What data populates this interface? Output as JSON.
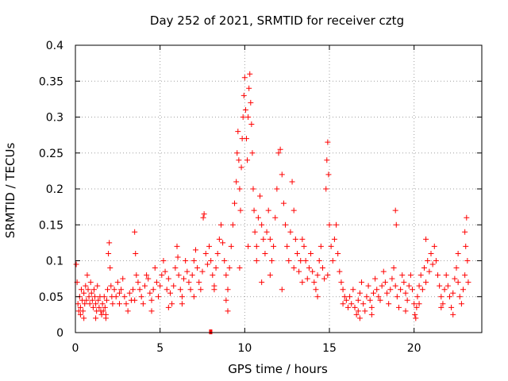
{
  "chart_data": {
    "type": "scatter",
    "title": "Day 252 of 2021, SRMTID for receiver cztg",
    "xlabel": "GPS time / hours",
    "ylabel": "SRMTID / TECUs",
    "xlim": [
      0,
      24
    ],
    "ylim": [
      0,
      0.4
    ],
    "x_ticks": [
      0,
      5,
      10,
      15,
      20
    ],
    "x_tick_labels": [
      "0",
      "5",
      "10",
      "15",
      "20"
    ],
    "y_ticks": [
      0,
      0.05,
      0.1,
      0.15,
      0.2,
      0.25,
      0.3,
      0.35,
      0.4
    ],
    "y_tick_labels": [
      "0",
      "0.05",
      "0.1",
      "0.15",
      "0.2",
      "0.25",
      "0.3",
      "0.35",
      "0.4"
    ],
    "grid": true,
    "marker": "plus",
    "color": "#ff0000",
    "series": [
      {
        "name": "SRMTID",
        "points": [
          [
            0.05,
            0.095
          ],
          [
            0.1,
            0.07
          ],
          [
            0.15,
            0.04
          ],
          [
            0.2,
            0.03
          ],
          [
            0.25,
            0.05
          ],
          [
            0.3,
            0.035
          ],
          [
            0.35,
            0.06
          ],
          [
            0.4,
            0.045
          ],
          [
            0.45,
            0.03
          ],
          [
            0.5,
            0.055
          ],
          [
            0.55,
            0.04
          ],
          [
            0.6,
            0.065
          ],
          [
            0.65,
            0.045
          ],
          [
            0.7,
            0.08
          ],
          [
            0.75,
            0.06
          ],
          [
            0.8,
            0.05
          ],
          [
            0.85,
            0.04
          ],
          [
            0.9,
            0.07
          ],
          [
            0.95,
            0.055
          ],
          [
            1.0,
            0.045
          ],
          [
            1.05,
            0.035
          ],
          [
            1.1,
            0.06
          ],
          [
            1.15,
            0.05
          ],
          [
            1.2,
            0.04
          ],
          [
            1.25,
            0.03
          ],
          [
            1.3,
            0.065
          ],
          [
            1.35,
            0.045
          ],
          [
            1.4,
            0.035
          ],
          [
            1.45,
            0.05
          ],
          [
            1.5,
            0.03
          ],
          [
            1.55,
            0.025
          ],
          [
            1.6,
            0.04
          ],
          [
            1.65,
            0.03
          ],
          [
            1.7,
            0.05
          ],
          [
            1.75,
            0.035
          ],
          [
            1.8,
            0.025
          ],
          [
            1.85,
            0.045
          ],
          [
            1.9,
            0.06
          ],
          [
            1.95,
            0.11
          ],
          [
            2.0,
            0.125
          ],
          [
            2.05,
            0.09
          ],
          [
            2.1,
            0.065
          ],
          [
            2.15,
            0.05
          ],
          [
            2.2,
            0.04
          ],
          [
            2.3,
            0.06
          ],
          [
            2.4,
            0.05
          ],
          [
            2.5,
            0.07
          ],
          [
            2.6,
            0.055
          ],
          [
            2.7,
            0.06
          ],
          [
            2.8,
            0.075
          ],
          [
            2.9,
            0.05
          ],
          [
            3.0,
            0.04
          ],
          [
            3.1,
            0.03
          ],
          [
            3.2,
            0.055
          ],
          [
            3.3,
            0.045
          ],
          [
            3.4,
            0.06
          ],
          [
            3.5,
            0.14
          ],
          [
            3.55,
            0.11
          ],
          [
            3.6,
            0.08
          ],
          [
            3.7,
            0.07
          ],
          [
            3.8,
            0.06
          ],
          [
            3.9,
            0.05
          ],
          [
            4.0,
            0.04
          ],
          [
            4.1,
            0.065
          ],
          [
            4.2,
            0.08
          ],
          [
            4.3,
            0.075
          ],
          [
            4.4,
            0.055
          ],
          [
            4.5,
            0.045
          ],
          [
            4.6,
            0.06
          ],
          [
            4.7,
            0.09
          ],
          [
            4.8,
            0.07
          ],
          [
            4.9,
            0.05
          ],
          [
            5.0,
            0.065
          ],
          [
            5.1,
            0.08
          ],
          [
            5.2,
            0.1
          ],
          [
            5.3,
            0.085
          ],
          [
            5.4,
            0.06
          ],
          [
            5.5,
            0.075
          ],
          [
            5.6,
            0.055
          ],
          [
            5.7,
            0.04
          ],
          [
            5.8,
            0.065
          ],
          [
            5.9,
            0.09
          ],
          [
            6.0,
            0.12
          ],
          [
            6.05,
            0.105
          ],
          [
            6.1,
            0.08
          ],
          [
            6.2,
            0.06
          ],
          [
            6.3,
            0.05
          ],
          [
            6.4,
            0.075
          ],
          [
            6.5,
            0.1
          ],
          [
            6.6,
            0.085
          ],
          [
            6.7,
            0.07
          ],
          [
            6.8,
            0.06
          ],
          [
            6.9,
            0.08
          ],
          [
            7.0,
            0.1
          ],
          [
            7.1,
            0.115
          ],
          [
            7.2,
            0.09
          ],
          [
            7.3,
            0.07
          ],
          [
            7.4,
            0.06
          ],
          [
            7.5,
            0.085
          ],
          [
            7.55,
            0.16
          ],
          [
            7.6,
            0.165
          ],
          [
            7.7,
            0.11
          ],
          [
            7.8,
            0.095
          ],
          [
            7.9,
            0.12
          ],
          [
            8.0,
            0.1
          ],
          [
            8.1,
            0.08
          ],
          [
            8.2,
            0.065
          ],
          [
            8.3,
            0.09
          ],
          [
            8.4,
            0.11
          ],
          [
            8.5,
            0.13
          ],
          [
            8.6,
            0.15
          ],
          [
            8.7,
            0.125
          ],
          [
            8.8,
            0.1
          ],
          [
            8.9,
            0.08
          ],
          [
            9.0,
            0.06
          ],
          [
            9.1,
            0.09
          ],
          [
            9.2,
            0.12
          ],
          [
            9.3,
            0.15
          ],
          [
            9.4,
            0.18
          ],
          [
            9.5,
            0.21
          ],
          [
            9.55,
            0.25
          ],
          [
            9.6,
            0.28
          ],
          [
            9.65,
            0.24
          ],
          [
            9.7,
            0.2
          ],
          [
            9.75,
            0.17
          ],
          [
            9.8,
            0.23
          ],
          [
            9.85,
            0.27
          ],
          [
            9.9,
            0.3
          ],
          [
            9.95,
            0.33
          ],
          [
            10.0,
            0.355
          ],
          [
            10.05,
            0.31
          ],
          [
            10.1,
            0.27
          ],
          [
            10.15,
            0.24
          ],
          [
            10.2,
            0.3
          ],
          [
            10.25,
            0.34
          ],
          [
            10.3,
            0.36
          ],
          [
            10.35,
            0.32
          ],
          [
            10.4,
            0.29
          ],
          [
            10.45,
            0.25
          ],
          [
            10.5,
            0.2
          ],
          [
            10.55,
            0.17
          ],
          [
            10.6,
            0.14
          ],
          [
            10.7,
            0.12
          ],
          [
            10.8,
            0.16
          ],
          [
            10.9,
            0.19
          ],
          [
            11.0,
            0.15
          ],
          [
            11.1,
            0.13
          ],
          [
            11.2,
            0.11
          ],
          [
            11.3,
            0.14
          ],
          [
            11.4,
            0.17
          ],
          [
            11.5,
            0.13
          ],
          [
            11.6,
            0.1
          ],
          [
            11.7,
            0.12
          ],
          [
            11.8,
            0.16
          ],
          [
            11.9,
            0.2
          ],
          [
            12.0,
            0.25
          ],
          [
            12.1,
            0.255
          ],
          [
            12.2,
            0.22
          ],
          [
            12.3,
            0.18
          ],
          [
            12.4,
            0.15
          ],
          [
            12.5,
            0.12
          ],
          [
            12.6,
            0.1
          ],
          [
            12.7,
            0.14
          ],
          [
            12.8,
            0.21
          ],
          [
            12.9,
            0.17
          ],
          [
            13.0,
            0.13
          ],
          [
            13.1,
            0.11
          ],
          [
            13.2,
            0.085
          ],
          [
            13.3,
            0.1
          ],
          [
            13.4,
            0.13
          ],
          [
            13.5,
            0.12
          ],
          [
            13.6,
            0.1
          ],
          [
            13.7,
            0.075
          ],
          [
            13.8,
            0.09
          ],
          [
            13.9,
            0.11
          ],
          [
            14.0,
            0.085
          ],
          [
            14.1,
            0.07
          ],
          [
            14.2,
            0.06
          ],
          [
            14.3,
            0.08
          ],
          [
            14.4,
            0.1
          ],
          [
            14.5,
            0.12
          ],
          [
            14.6,
            0.09
          ],
          [
            14.7,
            0.075
          ],
          [
            14.8,
            0.2
          ],
          [
            14.85,
            0.24
          ],
          [
            14.9,
            0.265
          ],
          [
            14.95,
            0.22
          ],
          [
            15.0,
            0.15
          ],
          [
            15.1,
            0.12
          ],
          [
            15.2,
            0.1
          ],
          [
            15.3,
            0.13
          ],
          [
            15.4,
            0.15
          ],
          [
            15.5,
            0.11
          ],
          [
            15.6,
            0.085
          ],
          [
            15.7,
            0.07
          ],
          [
            15.8,
            0.06
          ],
          [
            15.9,
            0.05
          ],
          [
            16.0,
            0.045
          ],
          [
            16.1,
            0.035
          ],
          [
            16.2,
            0.05
          ],
          [
            16.3,
            0.04
          ],
          [
            16.4,
            0.06
          ],
          [
            16.5,
            0.035
          ],
          [
            16.6,
            0.025
          ],
          [
            16.7,
            0.045
          ],
          [
            16.8,
            0.055
          ],
          [
            16.9,
            0.07
          ],
          [
            17.0,
            0.04
          ],
          [
            17.1,
            0.03
          ],
          [
            17.2,
            0.05
          ],
          [
            17.3,
            0.065
          ],
          [
            17.4,
            0.045
          ],
          [
            17.5,
            0.035
          ],
          [
            17.6,
            0.055
          ],
          [
            17.7,
            0.075
          ],
          [
            17.8,
            0.06
          ],
          [
            17.9,
            0.05
          ],
          [
            18.0,
            0.045
          ],
          [
            18.1,
            0.065
          ],
          [
            18.2,
            0.085
          ],
          [
            18.3,
            0.07
          ],
          [
            18.4,
            0.055
          ],
          [
            18.5,
            0.04
          ],
          [
            18.6,
            0.06
          ],
          [
            18.7,
            0.075
          ],
          [
            18.8,
            0.09
          ],
          [
            18.9,
            0.065
          ],
          [
            19.0,
            0.05
          ],
          [
            19.1,
            0.035
          ],
          [
            19.2,
            0.06
          ],
          [
            19.3,
            0.08
          ],
          [
            19.4,
            0.07
          ],
          [
            19.5,
            0.055
          ],
          [
            19.6,
            0.045
          ],
          [
            19.7,
            0.065
          ],
          [
            19.8,
            0.08
          ],
          [
            19.9,
            0.06
          ],
          [
            20.0,
            0.04
          ],
          [
            20.05,
            0.025
          ],
          [
            20.1,
            0.02
          ],
          [
            20.15,
            0.035
          ],
          [
            20.2,
            0.05
          ],
          [
            20.3,
            0.065
          ],
          [
            20.4,
            0.08
          ],
          [
            20.5,
            0.06
          ],
          [
            20.6,
            0.09
          ],
          [
            20.7,
            0.07
          ],
          [
            20.8,
            0.1
          ],
          [
            20.9,
            0.085
          ],
          [
            21.0,
            0.11
          ],
          [
            21.1,
            0.095
          ],
          [
            21.2,
            0.12
          ],
          [
            21.3,
            0.1
          ],
          [
            21.4,
            0.08
          ],
          [
            21.5,
            0.065
          ],
          [
            21.6,
            0.05
          ],
          [
            21.7,
            0.04
          ],
          [
            21.8,
            0.06
          ],
          [
            21.9,
            0.08
          ],
          [
            22.0,
            0.065
          ],
          [
            22.1,
            0.05
          ],
          [
            22.2,
            0.035
          ],
          [
            22.3,
            0.055
          ],
          [
            22.4,
            0.075
          ],
          [
            22.5,
            0.09
          ],
          [
            22.6,
            0.07
          ],
          [
            22.7,
            0.05
          ],
          [
            22.8,
            0.04
          ],
          [
            22.9,
            0.06
          ],
          [
            23.0,
            0.08
          ],
          [
            23.05,
            0.12
          ],
          [
            23.1,
            0.16
          ],
          [
            23.15,
            0.1
          ],
          [
            23.2,
            0.07
          ],
          [
            23.0,
            0.14
          ],
          [
            22.6,
            0.11
          ],
          [
            20.7,
            0.13
          ],
          [
            18.9,
            0.17
          ],
          [
            18.95,
            0.15
          ],
          [
            16.7,
            0.03
          ],
          [
            16.8,
            0.02
          ],
          [
            17.5,
            0.025
          ],
          [
            19.5,
            0.03
          ],
          [
            20.3,
            0.04
          ],
          [
            21.6,
            0.035
          ],
          [
            22.3,
            0.025
          ],
          [
            9.0,
            0.03
          ],
          [
            8.9,
            0.045
          ],
          [
            8.2,
            0.06
          ],
          [
            7.0,
            0.05
          ],
          [
            6.3,
            0.04
          ],
          [
            5.5,
            0.035
          ],
          [
            4.5,
            0.03
          ],
          [
            3.5,
            0.045
          ],
          [
            2.6,
            0.04
          ],
          [
            1.8,
            0.02
          ],
          [
            0.3,
            0.025
          ],
          [
            0.5,
            0.02
          ],
          [
            1.2,
            0.02
          ],
          [
            11.0,
            0.07
          ],
          [
            11.5,
            0.08
          ],
          [
            12.2,
            0.06
          ],
          [
            12.9,
            0.09
          ],
          [
            13.4,
            0.07
          ],
          [
            14.3,
            0.05
          ],
          [
            14.9,
            0.08
          ],
          [
            15.8,
            0.04
          ],
          [
            10.7,
            0.1
          ],
          [
            10.2,
            0.12
          ],
          [
            9.7,
            0.09
          ]
        ]
      }
    ],
    "outliers": [
      [
        7.99,
        0.001
      ]
    ]
  }
}
